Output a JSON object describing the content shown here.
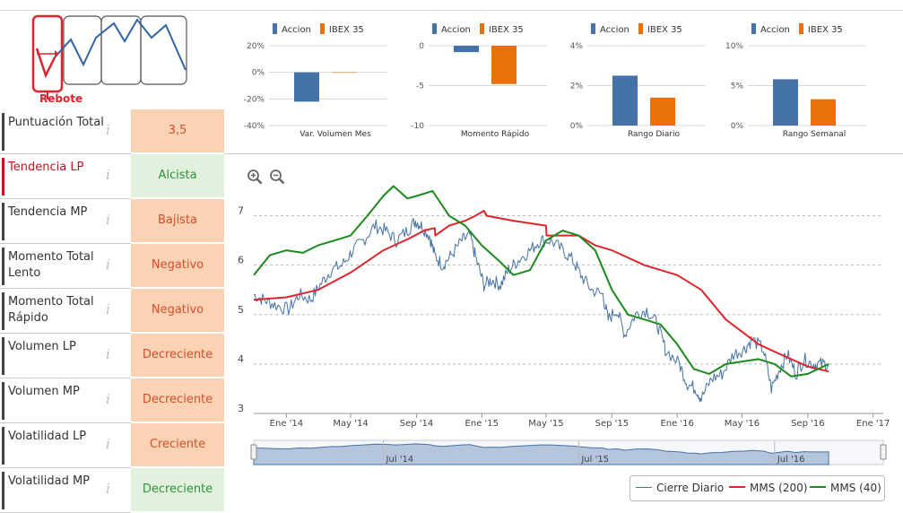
{
  "logo": {
    "label": "Rebote",
    "icon": "rebound-chart-icon"
  },
  "indicators": [
    {
      "label": "Puntuación Total",
      "value": "3,5",
      "style": "score",
      "active": false
    },
    {
      "label": "Tendencia LP",
      "value": "Alcista",
      "style": "green",
      "active": true
    },
    {
      "label": "Tendencia MP",
      "value": "Bajista",
      "style": "orange",
      "active": false
    },
    {
      "label": "Momento Total Lento",
      "value": "Negativo",
      "style": "orange",
      "active": false
    },
    {
      "label": "Momento Total Rápido",
      "value": "Negativo",
      "style": "orange",
      "active": false
    },
    {
      "label": "Volumen LP",
      "value": "Decreciente",
      "style": "orange",
      "active": false
    },
    {
      "label": "Volumen MP",
      "value": "Decreciente",
      "style": "orange",
      "active": false
    },
    {
      "label": "Volatilidad LP",
      "value": "Creciente",
      "style": "orange",
      "active": false
    },
    {
      "label": "Volatilidad MP",
      "value": "Decreciente",
      "style": "green",
      "active": false
    }
  ],
  "info_glyph": "i",
  "colors": {
    "accion": "#4572a7",
    "ibex": "#e8710a",
    "cierre": "#4572a7",
    "mms200": "#e0242b",
    "mms40": "#1c8a1c"
  },
  "chart_data": [
    {
      "type": "bar",
      "title": "Var. Volumen Mes",
      "categories": [
        "Accion",
        "IBEX 35"
      ],
      "values": [
        -22,
        0
      ],
      "ylim": [
        -40,
        20
      ],
      "yticks": [
        "20%",
        "0%",
        "-20%",
        "-40%"
      ],
      "tickvals": [
        20,
        0,
        -20,
        -40
      ]
    },
    {
      "type": "bar",
      "title": "Momento Rápido",
      "categories": [
        "Accion",
        "IBEX 35"
      ],
      "values": [
        -0.8,
        -4.8
      ],
      "ylim": [
        -10,
        0
      ],
      "yticks": [
        "0",
        "-5",
        "-10"
      ],
      "tickvals": [
        0,
        -5,
        -10
      ]
    },
    {
      "type": "bar",
      "title": "Rango Diario",
      "categories": [
        "Accion",
        "IBEX 35"
      ],
      "values": [
        2.5,
        1.4
      ],
      "ylim": [
        0,
        4
      ],
      "yticks": [
        "4%",
        "2%",
        "0%"
      ],
      "tickvals": [
        4,
        2,
        0
      ]
    },
    {
      "type": "bar",
      "title": "Rango Semanal",
      "categories": [
        "Accion",
        "IBEX 35"
      ],
      "values": [
        5.8,
        3.3
      ],
      "ylim": [
        0,
        10
      ],
      "yticks": [
        "10%",
        "5%",
        "0%"
      ],
      "tickvals": [
        10,
        5,
        0
      ]
    },
    {
      "type": "line",
      "title": "",
      "xlim": [
        "2013-11-01",
        "2017-01-20"
      ],
      "ylim": [
        3,
        7.5
      ],
      "yticks": [
        3,
        4,
        5,
        6,
        7
      ],
      "xticks": [
        {
          "date": "2014-01-01",
          "label": "Ene '14"
        },
        {
          "date": "2014-05-01",
          "label": "May '14"
        },
        {
          "date": "2014-09-01",
          "label": "Sep '14"
        },
        {
          "date": "2015-01-01",
          "label": "Ene '15"
        },
        {
          "date": "2015-05-01",
          "label": "May '15"
        },
        {
          "date": "2015-09-01",
          "label": "Sep '15"
        },
        {
          "date": "2016-01-01",
          "label": "Ene '16"
        },
        {
          "date": "2016-05-01",
          "label": "May '16"
        },
        {
          "date": "2016-09-01",
          "label": "Sep '16"
        },
        {
          "date": "2017-01-01",
          "label": "Ene '17"
        }
      ],
      "navigator_labels": [
        {
          "date": "2014-07-01",
          "label": "Jul '14"
        },
        {
          "date": "2015-07-01",
          "label": "Jul '15"
        },
        {
          "date": "2016-07-01",
          "label": "Jul '16"
        }
      ],
      "series": [
        {
          "name": "Cierre Diario",
          "key": "cierre",
          "points": [
            [
              "2013-11-01",
              5.4
            ],
            [
              "2013-11-20",
              5.3
            ],
            [
              "2013-12-10",
              5.2
            ],
            [
              "2014-01-05",
              5.1
            ],
            [
              "2014-01-25",
              5.4
            ],
            [
              "2014-02-15",
              5.3
            ],
            [
              "2014-03-05",
              5.6
            ],
            [
              "2014-03-25",
              5.9
            ],
            [
              "2014-04-15",
              6.0
            ],
            [
              "2014-05-05",
              6.3
            ],
            [
              "2014-05-25",
              6.5
            ],
            [
              "2014-06-15",
              6.8
            ],
            [
              "2014-07-05",
              6.7
            ],
            [
              "2014-07-25",
              6.5
            ],
            [
              "2014-08-15",
              6.7
            ],
            [
              "2014-08-30",
              6.9
            ],
            [
              "2014-09-10",
              6.8
            ],
            [
              "2014-09-25",
              6.6
            ],
            [
              "2014-10-05",
              6.2
            ],
            [
              "2014-10-20",
              6.0
            ],
            [
              "2014-11-05",
              6.2
            ],
            [
              "2014-11-25",
              6.5
            ],
            [
              "2014-12-10",
              6.6
            ],
            [
              "2014-12-22",
              6.1
            ],
            [
              "2015-01-05",
              5.6
            ],
            [
              "2015-01-20",
              5.7
            ],
            [
              "2015-02-05",
              5.6
            ],
            [
              "2015-02-20",
              5.9
            ],
            [
              "2015-03-10",
              6.1
            ],
            [
              "2015-04-01",
              6.3
            ],
            [
              "2015-04-20",
              6.5
            ],
            [
              "2015-05-10",
              6.5
            ],
            [
              "2015-06-01",
              6.3
            ],
            [
              "2015-06-20",
              6.1
            ],
            [
              "2015-07-05",
              5.8
            ],
            [
              "2015-07-25",
              5.5
            ],
            [
              "2015-08-15",
              5.4
            ],
            [
              "2015-08-25",
              4.9
            ],
            [
              "2015-09-10",
              5.1
            ],
            [
              "2015-09-25",
              4.6
            ],
            [
              "2015-10-15",
              5.0
            ],
            [
              "2015-11-05",
              5.1
            ],
            [
              "2015-11-25",
              4.8
            ],
            [
              "2015-12-10",
              4.3
            ],
            [
              "2016-01-05",
              4.0
            ],
            [
              "2016-01-20",
              3.6
            ],
            [
              "2016-02-05",
              3.5
            ],
            [
              "2016-02-15",
              3.3
            ],
            [
              "2016-03-05",
              3.7
            ],
            [
              "2016-03-25",
              3.8
            ],
            [
              "2016-04-15",
              4.2
            ],
            [
              "2016-05-05",
              4.3
            ],
            [
              "2016-05-20",
              4.5
            ],
            [
              "2016-06-10",
              4.3
            ],
            [
              "2016-06-25",
              3.5
            ],
            [
              "2016-07-10",
              3.9
            ],
            [
              "2016-07-25",
              4.2
            ],
            [
              "2016-08-10",
              3.8
            ],
            [
              "2016-08-25",
              4.1
            ],
            [
              "2016-09-10",
              4.0
            ],
            [
              "2016-09-25",
              4.0
            ],
            [
              "2016-10-10",
              4.0
            ]
          ]
        },
        {
          "name": "MMS (200)",
          "key": "mms200",
          "points": [
            [
              "2013-11-01",
              5.3
            ],
            [
              "2014-01-01",
              5.35
            ],
            [
              "2014-03-01",
              5.5
            ],
            [
              "2014-05-01",
              5.85
            ],
            [
              "2014-07-01",
              6.3
            ],
            [
              "2014-08-20",
              6.55
            ],
            [
              "2014-09-15",
              6.7
            ],
            [
              "2014-10-05",
              6.75
            ],
            [
              "2014-10-06",
              6.6
            ],
            [
              "2014-11-01",
              6.8
            ],
            [
              "2014-12-01",
              6.9
            ],
            [
              "2014-12-20",
              7.0
            ],
            [
              "2015-01-05",
              7.1
            ],
            [
              "2015-01-10",
              7.0
            ],
            [
              "2015-03-01",
              6.9
            ],
            [
              "2015-05-01",
              6.8
            ],
            [
              "2015-05-02",
              6.6
            ],
            [
              "2015-06-01",
              6.6
            ],
            [
              "2015-07-01",
              6.6
            ],
            [
              "2015-08-01",
              6.4
            ],
            [
              "2015-09-01",
              6.3
            ],
            [
              "2015-11-01",
              6.0
            ],
            [
              "2016-01-01",
              5.8
            ],
            [
              "2016-02-15",
              5.5
            ],
            [
              "2016-04-01",
              4.9
            ],
            [
              "2016-06-01",
              4.4
            ],
            [
              "2016-07-01",
              4.25
            ],
            [
              "2016-08-01",
              4.1
            ],
            [
              "2016-09-01",
              3.95
            ],
            [
              "2016-10-10",
              3.85
            ]
          ]
        },
        {
          "name": "MMS (40)",
          "key": "mms40",
          "points": [
            [
              "2013-11-01",
              5.8
            ],
            [
              "2013-12-01",
              6.2
            ],
            [
              "2014-01-01",
              6.3
            ],
            [
              "2014-02-01",
              6.25
            ],
            [
              "2014-03-01",
              6.4
            ],
            [
              "2014-04-01",
              6.5
            ],
            [
              "2014-05-01",
              6.6
            ],
            [
              "2014-06-01",
              7.0
            ],
            [
              "2014-07-01",
              7.4
            ],
            [
              "2014-07-20",
              7.6
            ],
            [
              "2014-08-15",
              7.35
            ],
            [
              "2014-09-01",
              7.4
            ],
            [
              "2014-10-01",
              7.5
            ],
            [
              "2014-11-01",
              7.0
            ],
            [
              "2014-12-01",
              6.8
            ],
            [
              "2015-01-01",
              6.4
            ],
            [
              "2015-02-01",
              6.1
            ],
            [
              "2015-03-01",
              5.8
            ],
            [
              "2015-04-01",
              5.9
            ],
            [
              "2015-05-01",
              6.5
            ],
            [
              "2015-06-01",
              6.7
            ],
            [
              "2015-07-01",
              6.6
            ],
            [
              "2015-08-01",
              6.3
            ],
            [
              "2015-09-01",
              5.5
            ],
            [
              "2015-10-01",
              5.0
            ],
            [
              "2015-11-01",
              4.9
            ],
            [
              "2015-12-01",
              4.8
            ],
            [
              "2016-01-01",
              4.4
            ],
            [
              "2016-02-01",
              3.9
            ],
            [
              "2016-03-01",
              3.8
            ],
            [
              "2016-04-01",
              4.0
            ],
            [
              "2016-05-01",
              4.05
            ],
            [
              "2016-06-01",
              4.1
            ],
            [
              "2016-07-01",
              4.0
            ],
            [
              "2016-08-01",
              3.75
            ],
            [
              "2016-09-01",
              3.8
            ],
            [
              "2016-10-10",
              4.0
            ]
          ]
        }
      ]
    }
  ]
}
